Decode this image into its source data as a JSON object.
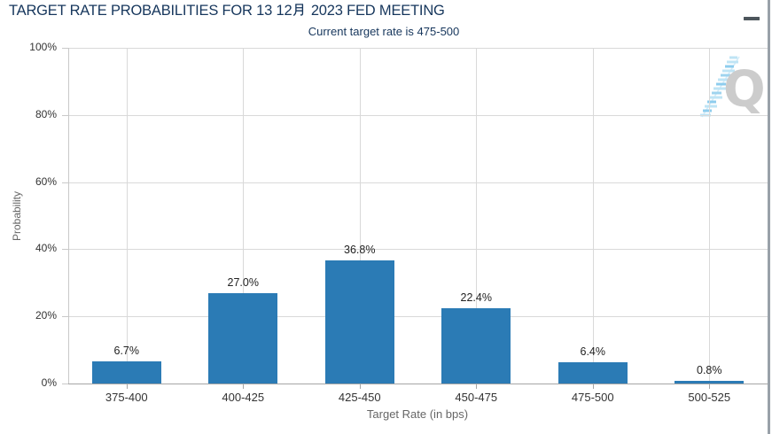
{
  "page": {
    "title": "TARGET RATE PROBABILITIES FOR 13 12月 2023 FED MEETING",
    "title_prefix": "TARGET RATE PROBABILITIES FOR 13 12",
    "title_cjk": "月",
    "title_suffix": " 2023 FED MEETING",
    "subtitle": "Current target rate is 475-500",
    "menu_icon": "hamburger-icon",
    "watermark_letter": "Q"
  },
  "chart_data": {
    "type": "bar",
    "title": "TARGET RATE PROBABILITIES FOR 13 12月 2023 FED MEETING",
    "subtitle": "Current target rate is 475-500",
    "categories": [
      "375-400",
      "400-425",
      "425-450",
      "450-475",
      "475-500",
      "500-525"
    ],
    "values": [
      6.7,
      27.0,
      36.8,
      22.4,
      6.4,
      0.8
    ],
    "labels": [
      "6.7%",
      "27.0%",
      "36.8%",
      "22.4%",
      "6.4%",
      "0.8%"
    ],
    "xlabel": "Target Rate (in bps)",
    "ylabel": "Probability",
    "ylim": [
      0,
      100
    ],
    "ytick_values": [
      100,
      80,
      60,
      40,
      20,
      0
    ],
    "ytick_labels": [
      "100%",
      "80%",
      "60%",
      "40%",
      "20%",
      "0%"
    ],
    "grid": true,
    "legend": false
  },
  "colors": {
    "navy": "#16365c",
    "bar": "#2b7bb5",
    "grid": "#d9d9d9",
    "axis": "#a6a6a6",
    "axis-light": "#c9c9c9",
    "tick-text": "#333333",
    "label-text": "#222222",
    "muted": "#666666",
    "menu": "#4d565c",
    "watermark": "#cccccc",
    "watermark-blue": "#9fd4ef",
    "border": "#99a1a9"
  }
}
